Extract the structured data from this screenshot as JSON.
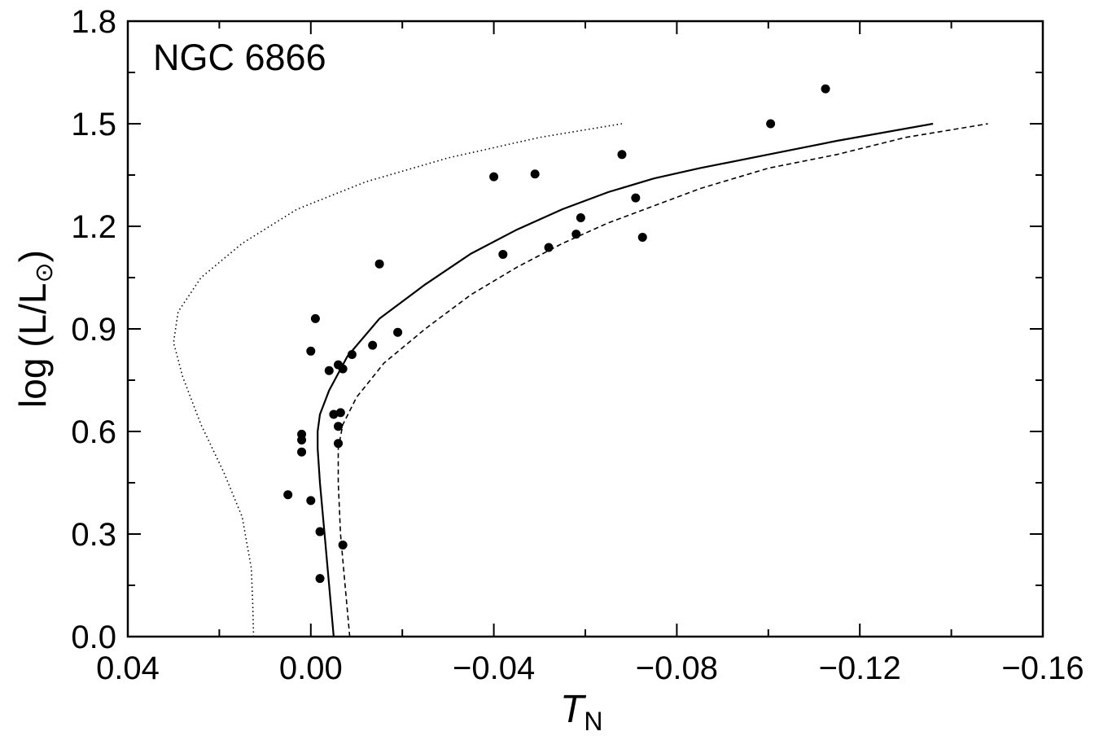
{
  "chart_data": {
    "type": "scatter",
    "annotation": "NGC 6866",
    "xlabel": "T",
    "xlabel_subscript": "N",
    "ylabel": "log (L/L",
    "ylabel_sun_symbol": "⊙",
    "ylabel_close": ")",
    "xlim": [
      0.04,
      -0.16
    ],
    "ylim": [
      0.0,
      1.8
    ],
    "x_ticks": [
      0.04,
      0.0,
      -0.04,
      -0.08,
      -0.12,
      -0.16
    ],
    "x_tick_labels": [
      "0.04",
      "0.00",
      "−0.04",
      "−0.08",
      "−0.12",
      "−0.16"
    ],
    "y_ticks": [
      0.0,
      0.3,
      0.6,
      0.9,
      1.2,
      1.5,
      1.8
    ],
    "y_tick_labels": [
      "0.0",
      "0.3",
      "0.6",
      "0.9",
      "1.2",
      "1.5",
      "1.8"
    ],
    "x_minor_step": 0.02,
    "y_minor_step": 0.15,
    "grid": false,
    "points": [
      {
        "x": 0.005,
        "y": 0.415
      },
      {
        "x": 0.0,
        "y": 0.398
      },
      {
        "x": -0.002,
        "y": 0.307
      },
      {
        "x": -0.002,
        "y": 0.17
      },
      {
        "x": -0.007,
        "y": 0.268
      },
      {
        "x": 0.002,
        "y": 0.54
      },
      {
        "x": 0.002,
        "y": 0.575
      },
      {
        "x": 0.002,
        "y": 0.592
      },
      {
        "x": -0.005,
        "y": 0.65
      },
      {
        "x": -0.006,
        "y": 0.615
      },
      {
        "x": -0.006,
        "y": 0.565
      },
      {
        "x": -0.0065,
        "y": 0.655
      },
      {
        "x": 0.0,
        "y": 0.835
      },
      {
        "x": -0.001,
        "y": 0.93
      },
      {
        "x": -0.004,
        "y": 0.778
      },
      {
        "x": -0.006,
        "y": 0.795
      },
      {
        "x": -0.007,
        "y": 0.783
      },
      {
        "x": -0.009,
        "y": 0.825
      },
      {
        "x": -0.0135,
        "y": 0.852
      },
      {
        "x": -0.015,
        "y": 1.09
      },
      {
        "x": -0.019,
        "y": 0.89
      },
      {
        "x": -0.04,
        "y": 1.345
      },
      {
        "x": -0.042,
        "y": 1.118
      },
      {
        "x": -0.049,
        "y": 1.353
      },
      {
        "x": -0.052,
        "y": 1.138
      },
      {
        "x": -0.058,
        "y": 1.177
      },
      {
        "x": -0.059,
        "y": 1.225
      },
      {
        "x": -0.068,
        "y": 1.41
      },
      {
        "x": -0.071,
        "y": 1.283
      },
      {
        "x": -0.0725,
        "y": 1.168
      },
      {
        "x": -0.1005,
        "y": 1.5
      },
      {
        "x": -0.1125,
        "y": 1.602
      }
    ],
    "curves": [
      {
        "style": "solid",
        "points": [
          [
            -0.005,
            0.0
          ],
          [
            -0.004,
            0.15
          ],
          [
            -0.003,
            0.3
          ],
          [
            -0.002,
            0.45
          ],
          [
            -0.0015,
            0.55
          ],
          [
            -0.0015,
            0.6
          ],
          [
            -0.002,
            0.65
          ],
          [
            -0.004,
            0.72
          ],
          [
            -0.008,
            0.82
          ],
          [
            -0.015,
            0.93
          ],
          [
            -0.025,
            1.03
          ],
          [
            -0.035,
            1.12
          ],
          [
            -0.045,
            1.19
          ],
          [
            -0.055,
            1.25
          ],
          [
            -0.065,
            1.3
          ],
          [
            -0.075,
            1.34
          ],
          [
            -0.085,
            1.37
          ],
          [
            -0.1,
            1.41
          ],
          [
            -0.115,
            1.45
          ],
          [
            -0.136,
            1.5
          ]
        ]
      },
      {
        "style": "dashed",
        "points": [
          [
            -0.0085,
            0.0
          ],
          [
            -0.0075,
            0.15
          ],
          [
            -0.0065,
            0.3
          ],
          [
            -0.006,
            0.45
          ],
          [
            -0.006,
            0.55
          ],
          [
            -0.007,
            0.62
          ],
          [
            -0.01,
            0.7
          ],
          [
            -0.016,
            0.8
          ],
          [
            -0.025,
            0.9
          ],
          [
            -0.035,
            1.0
          ],
          [
            -0.045,
            1.08
          ],
          [
            -0.055,
            1.15
          ],
          [
            -0.065,
            1.21
          ],
          [
            -0.075,
            1.26
          ],
          [
            -0.085,
            1.31
          ],
          [
            -0.1,
            1.37
          ],
          [
            -0.115,
            1.41
          ],
          [
            -0.13,
            1.46
          ],
          [
            -0.148,
            1.5
          ]
        ]
      },
      {
        "style": "dotted",
        "points": [
          [
            0.0125,
            0.0
          ],
          [
            0.0127,
            0.1
          ],
          [
            0.013,
            0.2
          ],
          [
            0.015,
            0.35
          ],
          [
            0.019,
            0.48
          ],
          [
            0.024,
            0.62
          ],
          [
            0.028,
            0.76
          ],
          [
            0.03,
            0.86
          ],
          [
            0.029,
            0.95
          ],
          [
            0.024,
            1.05
          ],
          [
            0.015,
            1.15
          ],
          [
            0.003,
            1.25
          ],
          [
            -0.012,
            1.33
          ],
          [
            -0.03,
            1.4
          ],
          [
            -0.05,
            1.46
          ],
          [
            -0.068,
            1.5
          ]
        ]
      }
    ]
  }
}
